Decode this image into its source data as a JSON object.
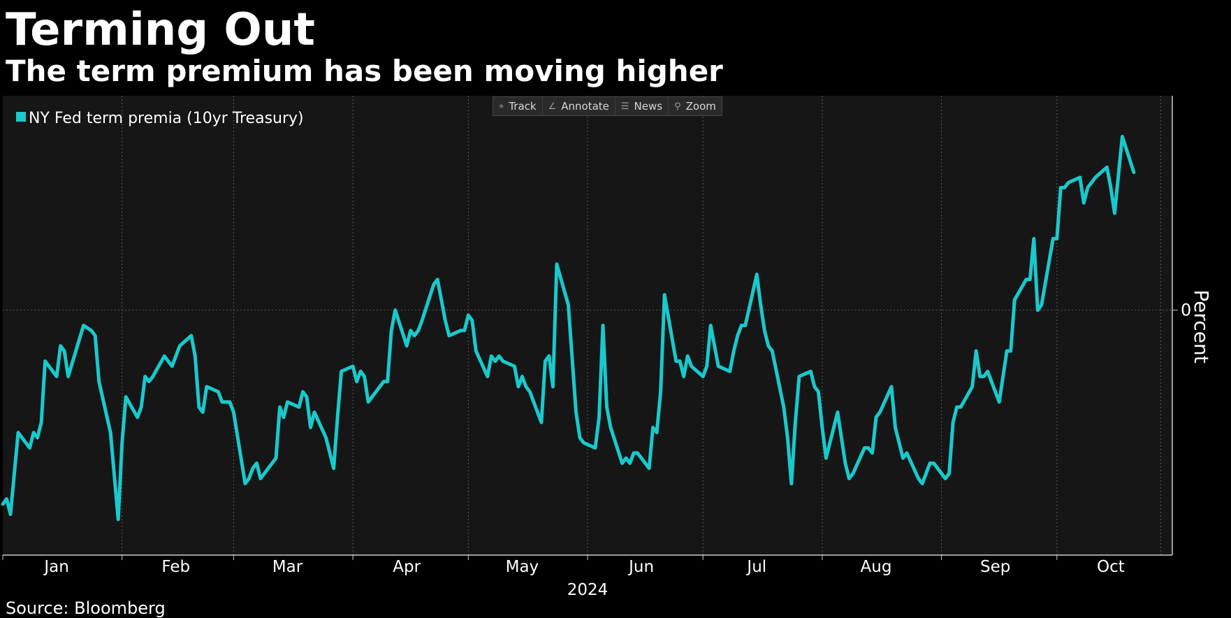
{
  "header": {
    "title": "Terming Out",
    "subtitle": "The term premium has been moving higher"
  },
  "toolbar": {
    "items": [
      {
        "label": "Track",
        "icon": "crosshair-icon"
      },
      {
        "label": "Annotate",
        "icon": "pencil-icon"
      },
      {
        "label": "News",
        "icon": "news-icon"
      },
      {
        "label": "Zoom",
        "icon": "magnifier-icon"
      }
    ]
  },
  "footer": {
    "source": "Source: Bloomberg"
  },
  "colors": {
    "background": "#000000",
    "plot_background": "#161616",
    "series": "#19c9cc",
    "grid": "#5a5a5a",
    "text": "#ffffff"
  },
  "chart_data": {
    "type": "line",
    "title": "Terming Out",
    "subtitle": "The term premium has been moving higher",
    "xlabel": "2024",
    "ylabel": "Percent",
    "x_tick_labels": [
      "Jan",
      "Feb",
      "Mar",
      "Apr",
      "May",
      "Jun",
      "Jul",
      "Aug",
      "Sep",
      "Oct"
    ],
    "x_year_label": "2024",
    "y_ticks": [
      0
    ],
    "ylim": [
      -0.48,
      0.42
    ],
    "xlim": [
      "2024-01-01",
      "2024-10-31"
    ],
    "grid": true,
    "legend": "top-left",
    "series": [
      {
        "name": "NY Fed term premia (10yr Treasury)",
        "color": "#19c9cc",
        "points": [
          [
            "2024-01-01",
            -0.38
          ],
          [
            "2024-01-02",
            -0.37
          ],
          [
            "2024-01-03",
            -0.4
          ],
          [
            "2024-01-04",
            -0.32
          ],
          [
            "2024-01-05",
            -0.24
          ],
          [
            "2024-01-08",
            -0.27
          ],
          [
            "2024-01-09",
            -0.24
          ],
          [
            "2024-01-10",
            -0.25
          ],
          [
            "2024-01-11",
            -0.22
          ],
          [
            "2024-01-12",
            -0.1
          ],
          [
            "2024-01-15",
            -0.13
          ],
          [
            "2024-01-16",
            -0.07
          ],
          [
            "2024-01-17",
            -0.08
          ],
          [
            "2024-01-18",
            -0.13
          ],
          [
            "2024-01-22",
            -0.03
          ],
          [
            "2024-01-24",
            -0.04
          ],
          [
            "2024-01-25",
            -0.05
          ],
          [
            "2024-01-26",
            -0.14
          ],
          [
            "2024-01-29",
            -0.24
          ],
          [
            "2024-01-31",
            -0.41
          ],
          [
            "2024-02-01",
            -0.26
          ],
          [
            "2024-02-02",
            -0.17
          ],
          [
            "2024-02-05",
            -0.21
          ],
          [
            "2024-02-06",
            -0.19
          ],
          [
            "2024-02-07",
            -0.13
          ],
          [
            "2024-02-08",
            -0.14
          ],
          [
            "2024-02-09",
            -0.13
          ],
          [
            "2024-02-12",
            -0.09
          ],
          [
            "2024-02-13",
            -0.1
          ],
          [
            "2024-02-14",
            -0.11
          ],
          [
            "2024-02-15",
            -0.09
          ],
          [
            "2024-02-16",
            -0.07
          ],
          [
            "2024-02-19",
            -0.05
          ],
          [
            "2024-02-20",
            -0.09
          ],
          [
            "2024-02-21",
            -0.19
          ],
          [
            "2024-02-22",
            -0.2
          ],
          [
            "2024-02-23",
            -0.15
          ],
          [
            "2024-02-26",
            -0.16
          ],
          [
            "2024-02-27",
            -0.18
          ],
          [
            "2024-02-29",
            -0.18
          ],
          [
            "2024-03-01",
            -0.2
          ],
          [
            "2024-03-04",
            -0.34
          ],
          [
            "2024-03-05",
            -0.33
          ],
          [
            "2024-03-06",
            -0.31
          ],
          [
            "2024-03-07",
            -0.3
          ],
          [
            "2024-03-08",
            -0.33
          ],
          [
            "2024-03-11",
            -0.3
          ],
          [
            "2024-03-12",
            -0.29
          ],
          [
            "2024-03-13",
            -0.19
          ],
          [
            "2024-03-14",
            -0.21
          ],
          [
            "2024-03-15",
            -0.18
          ],
          [
            "2024-03-18",
            -0.19
          ],
          [
            "2024-03-19",
            -0.16
          ],
          [
            "2024-03-20",
            -0.17
          ],
          [
            "2024-03-21",
            -0.23
          ],
          [
            "2024-03-22",
            -0.2
          ],
          [
            "2024-03-25",
            -0.25
          ],
          [
            "2024-03-27",
            -0.31
          ],
          [
            "2024-03-28",
            -0.21
          ],
          [
            "2024-03-29",
            -0.12
          ],
          [
            "2024-04-01",
            -0.11
          ],
          [
            "2024-04-02",
            -0.14
          ],
          [
            "2024-04-03",
            -0.12
          ],
          [
            "2024-04-04",
            -0.13
          ],
          [
            "2024-04-05",
            -0.18
          ],
          [
            "2024-04-08",
            -0.15
          ],
          [
            "2024-04-09",
            -0.14
          ],
          [
            "2024-04-10",
            -0.14
          ],
          [
            "2024-04-11",
            -0.04
          ],
          [
            "2024-04-12",
            0.0
          ],
          [
            "2024-04-15",
            -0.07
          ],
          [
            "2024-04-16",
            -0.04
          ],
          [
            "2024-04-17",
            -0.05
          ],
          [
            "2024-04-18",
            -0.04
          ],
          [
            "2024-04-19",
            -0.02
          ],
          [
            "2024-04-22",
            0.05
          ],
          [
            "2024-04-23",
            0.06
          ],
          [
            "2024-04-24",
            0.02
          ],
          [
            "2024-04-25",
            -0.02
          ],
          [
            "2024-04-26",
            -0.05
          ],
          [
            "2024-04-29",
            -0.04
          ],
          [
            "2024-04-30",
            -0.04
          ],
          [
            "2024-05-01",
            -0.01
          ],
          [
            "2024-05-02",
            -0.02
          ],
          [
            "2024-05-03",
            -0.08
          ],
          [
            "2024-05-06",
            -0.13
          ],
          [
            "2024-05-07",
            -0.09
          ],
          [
            "2024-05-08",
            -0.1
          ],
          [
            "2024-05-09",
            -0.09
          ],
          [
            "2024-05-10",
            -0.1
          ],
          [
            "2024-05-13",
            -0.11
          ],
          [
            "2024-05-14",
            -0.15
          ],
          [
            "2024-05-15",
            -0.13
          ],
          [
            "2024-05-16",
            -0.15
          ],
          [
            "2024-05-17",
            -0.16
          ],
          [
            "2024-05-20",
            -0.22
          ],
          [
            "2024-05-21",
            -0.1
          ],
          [
            "2024-05-22",
            -0.09
          ],
          [
            "2024-05-23",
            -0.15
          ],
          [
            "2024-05-24",
            0.09
          ],
          [
            "2024-05-27",
            0.01
          ],
          [
            "2024-05-29",
            -0.2
          ],
          [
            "2024-05-30",
            -0.25
          ],
          [
            "2024-05-31",
            -0.26
          ],
          [
            "2024-06-03",
            -0.27
          ],
          [
            "2024-06-04",
            -0.21
          ],
          [
            "2024-06-05",
            -0.03
          ],
          [
            "2024-06-06",
            -0.19
          ],
          [
            "2024-06-07",
            -0.23
          ],
          [
            "2024-06-10",
            -0.3
          ],
          [
            "2024-06-11",
            -0.29
          ],
          [
            "2024-06-12",
            -0.3
          ],
          [
            "2024-06-13",
            -0.28
          ],
          [
            "2024-06-14",
            -0.28
          ],
          [
            "2024-06-17",
            -0.31
          ],
          [
            "2024-06-18",
            -0.23
          ],
          [
            "2024-06-19",
            -0.24
          ],
          [
            "2024-06-20",
            -0.16
          ],
          [
            "2024-06-21",
            0.03
          ],
          [
            "2024-06-24",
            -0.1
          ],
          [
            "2024-06-25",
            -0.1
          ],
          [
            "2024-06-26",
            -0.13
          ],
          [
            "2024-06-27",
            -0.09
          ],
          [
            "2024-06-28",
            -0.11
          ],
          [
            "2024-07-01",
            -0.13
          ],
          [
            "2024-07-02",
            -0.11
          ],
          [
            "2024-07-03",
            -0.03
          ],
          [
            "2024-07-05",
            -0.11
          ],
          [
            "2024-07-08",
            -0.12
          ],
          [
            "2024-07-09",
            -0.08
          ],
          [
            "2024-07-10",
            -0.05
          ],
          [
            "2024-07-11",
            -0.03
          ],
          [
            "2024-07-12",
            -0.03
          ],
          [
            "2024-07-15",
            0.07
          ],
          [
            "2024-07-16",
            0.01
          ],
          [
            "2024-07-17",
            -0.04
          ],
          [
            "2024-07-18",
            -0.07
          ],
          [
            "2024-07-19",
            -0.08
          ],
          [
            "2024-07-22",
            -0.19
          ],
          [
            "2024-07-23",
            -0.25
          ],
          [
            "2024-07-24",
            -0.34
          ],
          [
            "2024-07-25",
            -0.22
          ],
          [
            "2024-07-26",
            -0.13
          ],
          [
            "2024-07-29",
            -0.12
          ],
          [
            "2024-07-30",
            -0.15
          ],
          [
            "2024-07-31",
            -0.16
          ],
          [
            "2024-08-01",
            -0.23
          ],
          [
            "2024-08-02",
            -0.29
          ],
          [
            "2024-08-05",
            -0.2
          ],
          [
            "2024-08-06",
            -0.25
          ],
          [
            "2024-08-07",
            -0.3
          ],
          [
            "2024-08-08",
            -0.33
          ],
          [
            "2024-08-09",
            -0.32
          ],
          [
            "2024-08-12",
            -0.27
          ],
          [
            "2024-08-13",
            -0.27
          ],
          [
            "2024-08-14",
            -0.28
          ],
          [
            "2024-08-15",
            -0.21
          ],
          [
            "2024-08-16",
            -0.2
          ],
          [
            "2024-08-19",
            -0.15
          ],
          [
            "2024-08-20",
            -0.23
          ],
          [
            "2024-08-21",
            -0.26
          ],
          [
            "2024-08-22",
            -0.29
          ],
          [
            "2024-08-23",
            -0.28
          ],
          [
            "2024-08-26",
            -0.33
          ],
          [
            "2024-08-27",
            -0.34
          ],
          [
            "2024-08-29",
            -0.3
          ],
          [
            "2024-08-30",
            -0.3
          ],
          [
            "2024-09-02",
            -0.33
          ],
          [
            "2024-09-03",
            -0.32
          ],
          [
            "2024-09-04",
            -0.22
          ],
          [
            "2024-09-05",
            -0.19
          ],
          [
            "2024-09-06",
            -0.19
          ],
          [
            "2024-09-09",
            -0.15
          ],
          [
            "2024-09-10",
            -0.08
          ],
          [
            "2024-09-11",
            -0.13
          ],
          [
            "2024-09-12",
            -0.13
          ],
          [
            "2024-09-13",
            -0.12
          ],
          [
            "2024-09-16",
            -0.18
          ],
          [
            "2024-09-17",
            -0.13
          ],
          [
            "2024-09-18",
            -0.08
          ],
          [
            "2024-09-19",
            -0.08
          ],
          [
            "2024-09-20",
            0.02
          ],
          [
            "2024-09-23",
            0.06
          ],
          [
            "2024-09-24",
            0.06
          ],
          [
            "2024-09-25",
            0.14
          ],
          [
            "2024-09-26",
            0.0
          ],
          [
            "2024-09-27",
            0.01
          ],
          [
            "2024-09-30",
            0.14
          ],
          [
            "2024-10-01",
            0.14
          ],
          [
            "2024-10-02",
            0.24
          ],
          [
            "2024-10-03",
            0.24
          ],
          [
            "2024-10-04",
            0.25
          ],
          [
            "2024-10-07",
            0.26
          ],
          [
            "2024-10-08",
            0.21
          ],
          [
            "2024-10-09",
            0.24
          ],
          [
            "2024-10-10",
            0.25
          ],
          [
            "2024-10-11",
            0.26
          ],
          [
            "2024-10-14",
            0.28
          ],
          [
            "2024-10-15",
            0.24
          ],
          [
            "2024-10-16",
            0.19
          ],
          [
            "2024-10-18",
            0.34
          ],
          [
            "2024-10-21",
            0.27
          ]
        ]
      }
    ]
  }
}
